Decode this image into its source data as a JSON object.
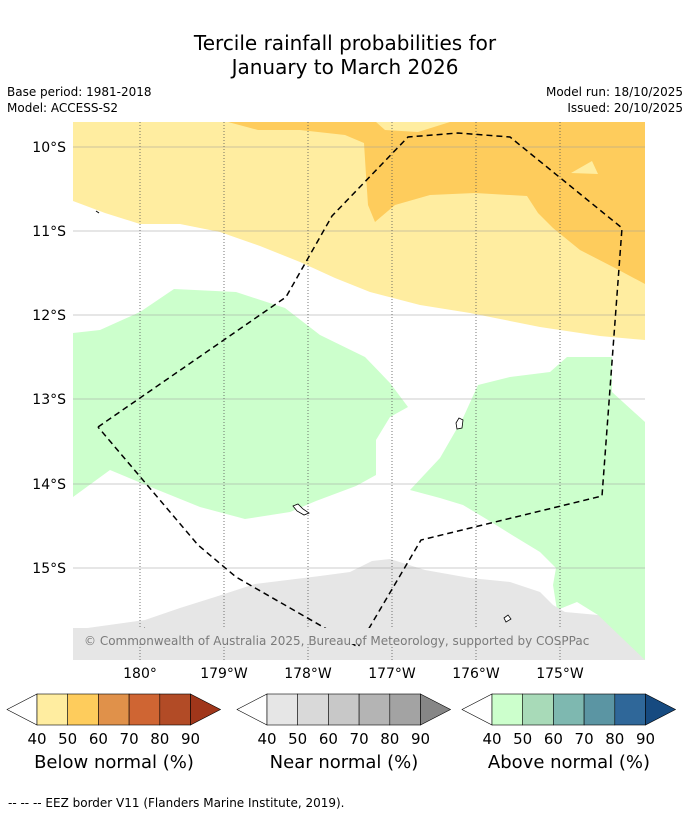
{
  "chart_data": {
    "type": "map",
    "title_line1": "Tercile rainfall probabilities for",
    "title_line2": "January to March 2026",
    "base_period": "Base period: 1981-2018",
    "model": "Model: ACCESS-S2",
    "model_run": "Model run: 18/10/2025",
    "issued": "Issued: 20/10/2025",
    "lat_ticks": [
      "10°S",
      "11°S",
      "12°S",
      "13°S",
      "14°S",
      "15°S"
    ],
    "lat_values": [
      -10,
      -11,
      -12,
      -13,
      -14,
      -15
    ],
    "lon_ticks": [
      "180°",
      "179°W",
      "178°W",
      "177°W",
      "176°W",
      "175°W"
    ],
    "lon_values": [
      180,
      -179,
      -178,
      -177,
      -176,
      -175
    ],
    "copyright": "© Commonwealth of Australia 2025, Bureau of Meteorology, supported by COSPPac",
    "colorbars": [
      {
        "label": "Below normal (%)",
        "ticks": [
          "40",
          "50",
          "60",
          "70",
          "80",
          "90"
        ],
        "colors": [
          "#ffeda0",
          "#fecc5c",
          "#e0914a",
          "#cf6533",
          "#b24b26",
          "#a0361a"
        ]
      },
      {
        "label": "Near normal (%)",
        "ticks": [
          "40",
          "50",
          "60",
          "70",
          "80",
          "90"
        ],
        "colors": [
          "#e6e6e6",
          "#d9d9d9",
          "#c8c8c8",
          "#b4b4b4",
          "#a3a3a3",
          "#868686"
        ]
      },
      {
        "label": "Above normal (%)",
        "ticks": [
          "40",
          "50",
          "60",
          "70",
          "80",
          "90"
        ],
        "colors": [
          "#ccffcc",
          "#a8dab8",
          "#7eb8b0",
          "#5b95a3",
          "#2f6799",
          "#164a80"
        ]
      }
    ],
    "legend_note": "--  --  -- EEZ border V11 (Flanders Marine Institute, 2019)."
  }
}
